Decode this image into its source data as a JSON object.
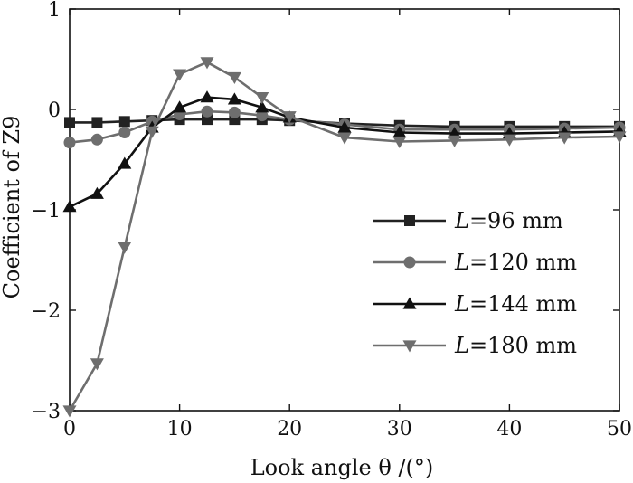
{
  "chart_data": {
    "type": "line",
    "xlabel": "Look angle θ /(°)",
    "ylabel": "Coefficient of Z9",
    "xlim": [
      0,
      50
    ],
    "ylim": [
      -3,
      1
    ],
    "xticks": [
      0,
      10,
      20,
      30,
      40,
      50
    ],
    "yticks": [
      -3,
      -2,
      -1,
      0,
      1
    ],
    "ytick_labels": [
      "−3",
      "−2",
      "−1",
      "0",
      "1"
    ],
    "x": [
      0,
      2.5,
      5,
      7.5,
      10,
      12.5,
      15,
      17.5,
      20,
      25,
      30,
      35,
      40,
      45,
      50
    ],
    "legend_position": "lower-right",
    "grid": false,
    "series": [
      {
        "name": "L=96 mm",
        "legend_italic": "L",
        "legend_rest": "=96 mm",
        "color": "#222222",
        "marker": "square",
        "values": [
          -0.13,
          -0.13,
          -0.12,
          -0.11,
          -0.1,
          -0.1,
          -0.1,
          -0.1,
          -0.11,
          -0.14,
          -0.16,
          -0.17,
          -0.17,
          -0.17,
          -0.17
        ]
      },
      {
        "name": "L=120 mm",
        "legend_italic": "L",
        "legend_rest": "=120 mm",
        "color": "#6e6e6e",
        "marker": "circle",
        "values": [
          -0.33,
          -0.3,
          -0.23,
          -0.12,
          -0.05,
          -0.02,
          -0.03,
          -0.06,
          -0.1,
          -0.15,
          -0.2,
          -0.2,
          -0.2,
          -0.19,
          -0.18
        ]
      },
      {
        "name": "L=144 mm",
        "legend_italic": "L",
        "legend_rest": "=144 mm",
        "color": "#111111",
        "marker": "triangle-up",
        "values": [
          -0.97,
          -0.84,
          -0.54,
          -0.18,
          0.02,
          0.12,
          0.1,
          0.02,
          -0.08,
          -0.18,
          -0.23,
          -0.24,
          -0.24,
          -0.23,
          -0.22
        ]
      },
      {
        "name": "L=180 mm",
        "legend_italic": "L",
        "legend_rest": "=180 mm",
        "color": "#6e6e6e",
        "marker": "triangle-down",
        "values": [
          -3.0,
          -2.53,
          -1.37,
          -0.22,
          0.35,
          0.47,
          0.32,
          0.12,
          -0.07,
          -0.28,
          -0.32,
          -0.31,
          -0.3,
          -0.28,
          -0.27
        ]
      }
    ]
  }
}
